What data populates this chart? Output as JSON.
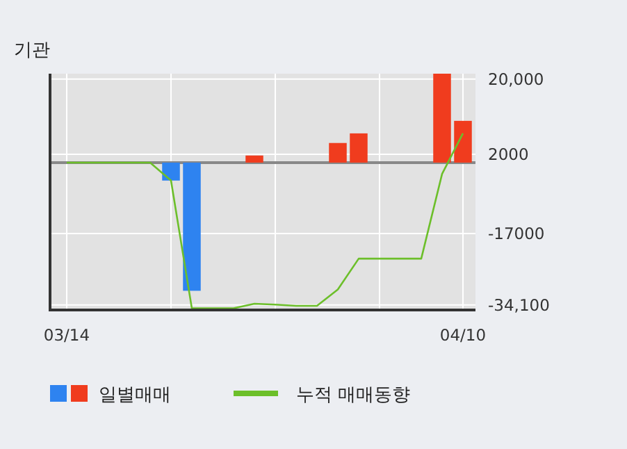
{
  "chart_data": {
    "type": "bar",
    "title": "기관",
    "categories": [
      "03/14",
      null,
      null,
      null,
      null,
      null,
      null,
      null,
      null,
      null,
      null,
      null,
      null,
      null,
      null,
      null,
      null,
      null,
      null,
      "04/10"
    ],
    "series": [
      {
        "name": "일별매매",
        "colors": [
          "#2e83f0",
          "#2e83f0",
          "#2e83f0",
          "#2e83f0",
          "#2e83f0",
          "#2e83f0",
          "#2e83f0",
          "#f03c1e",
          "#f03c1e",
          "#f03c1e",
          "#f03c1e",
          "#f03c1e",
          "#f03c1e",
          "#f03c1e",
          "#f03c1e",
          "#f03c1e",
          "#f03c1e",
          "#f03c1e",
          "#f03c1e",
          "#f03c1e"
        ],
        "values": [
          null,
          null,
          null,
          null,
          null,
          -4300,
          -30700,
          null,
          null,
          1700,
          null,
          null,
          null,
          4700,
          7000,
          null,
          null,
          null,
          21300,
          10000
        ]
      },
      {
        "type": "line",
        "name": "누적 매매동향",
        "color": "#6cbf2a",
        "values": [
          0,
          0,
          0,
          0,
          0,
          -4300,
          -34900,
          -34900,
          -34900,
          -33800,
          -34000,
          -34300,
          -34300,
          -30400,
          -23000,
          -23000,
          -23000,
          -23000,
          -2700,
          7000
        ]
      }
    ],
    "ylim": [
      -35300,
      21300
    ],
    "yticks": [
      {
        "value": 20000,
        "label": "20,000"
      },
      2000,
      -17000,
      {
        "value": -34100,
        "label": "-34,100"
      }
    ],
    "ref_lines": [
      {
        "axis": "y",
        "value": 0,
        "color": "#888888"
      }
    ],
    "grid": true,
    "legend": "bottom"
  }
}
